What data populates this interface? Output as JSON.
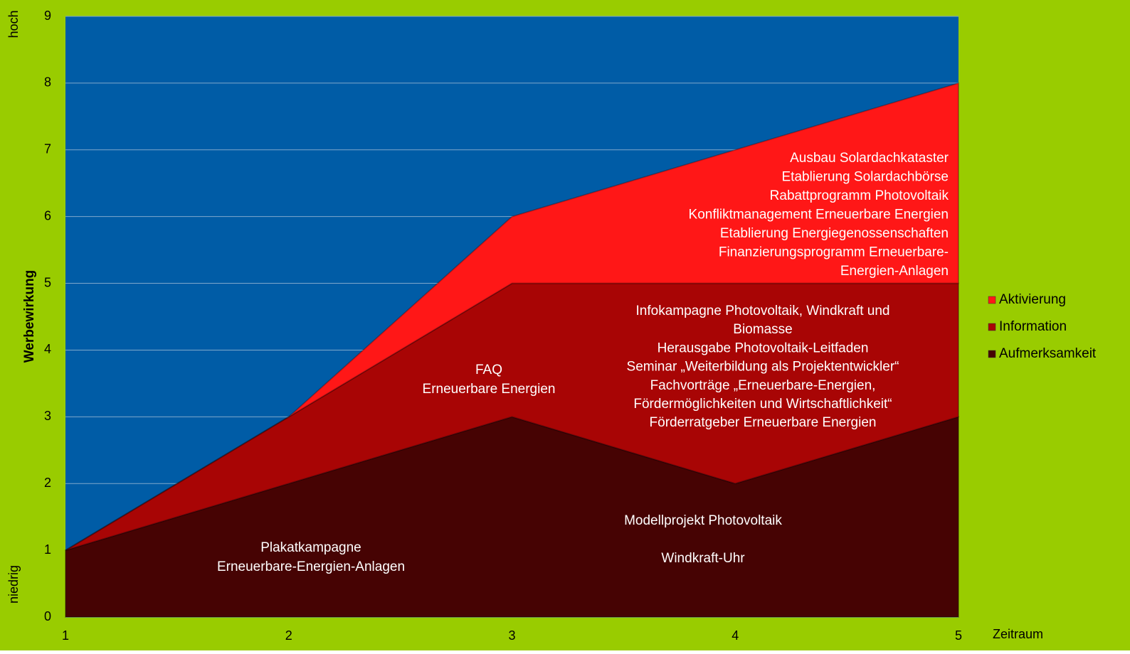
{
  "chart_data": {
    "type": "stacked_area",
    "x": [
      1,
      2,
      3,
      4,
      5
    ],
    "xlim": [
      1,
      5
    ],
    "xticks": [
      1,
      2,
      3,
      4,
      5
    ],
    "ylim": [
      0,
      9
    ],
    "yticks": [
      0,
      1,
      2,
      3,
      4,
      5,
      6,
      7,
      8,
      9
    ],
    "grid": true,
    "y_label": "Werbewirkung",
    "y_high_label": "hoch",
    "y_low_label": "niedrig",
    "x_label": "Zeitraum",
    "background_color": "#99cc00",
    "plot_color": "#005ca6",
    "legend": "right",
    "series": [
      {
        "name": "Aufmerksamkeit",
        "color": "#460303",
        "values": [
          1,
          2,
          3,
          2,
          3
        ]
      },
      {
        "name": "Information",
        "color": "#a80505",
        "values": [
          0,
          1,
          2,
          3,
          2
        ]
      },
      {
        "name": "Aktivierung",
        "color": "#ff1717",
        "values": [
          0,
          0,
          1,
          2,
          3
        ]
      }
    ],
    "annotations": [
      [
        "Ausbau Solardachkataster",
        "Etablierung Solardachbörse",
        "Rabattprogramm Photovoltaik",
        "Konfliktmanagement  Erneuerbare Energien",
        "Etablierung Energiegenossenschaften",
        "Finanzierungsprogramm Erneuerbare-",
        "Energien-Anlagen"
      ],
      [
        "FAQ",
        "Erneuerbare Energien"
      ],
      [
        "Infokampagne Photovoltaik, Windkraft und",
        "Biomasse",
        "Herausgabe Photovoltaik-Leitfaden",
        "Seminar „Weiterbildung als Projektentwickler“",
        "Fachvorträge „Erneuerbare-Energien,",
        "Fördermöglichkeiten und Wirtschaftlichkeit“",
        "Förderratgeber Erneuerbare Energien"
      ],
      [
        "Modellprojekt Photovoltaik"
      ],
      [
        "Windkraft-Uhr"
      ],
      [
        "Plakatkampagne",
        "Erneuerbare-Energien-Anlagen"
      ]
    ]
  }
}
